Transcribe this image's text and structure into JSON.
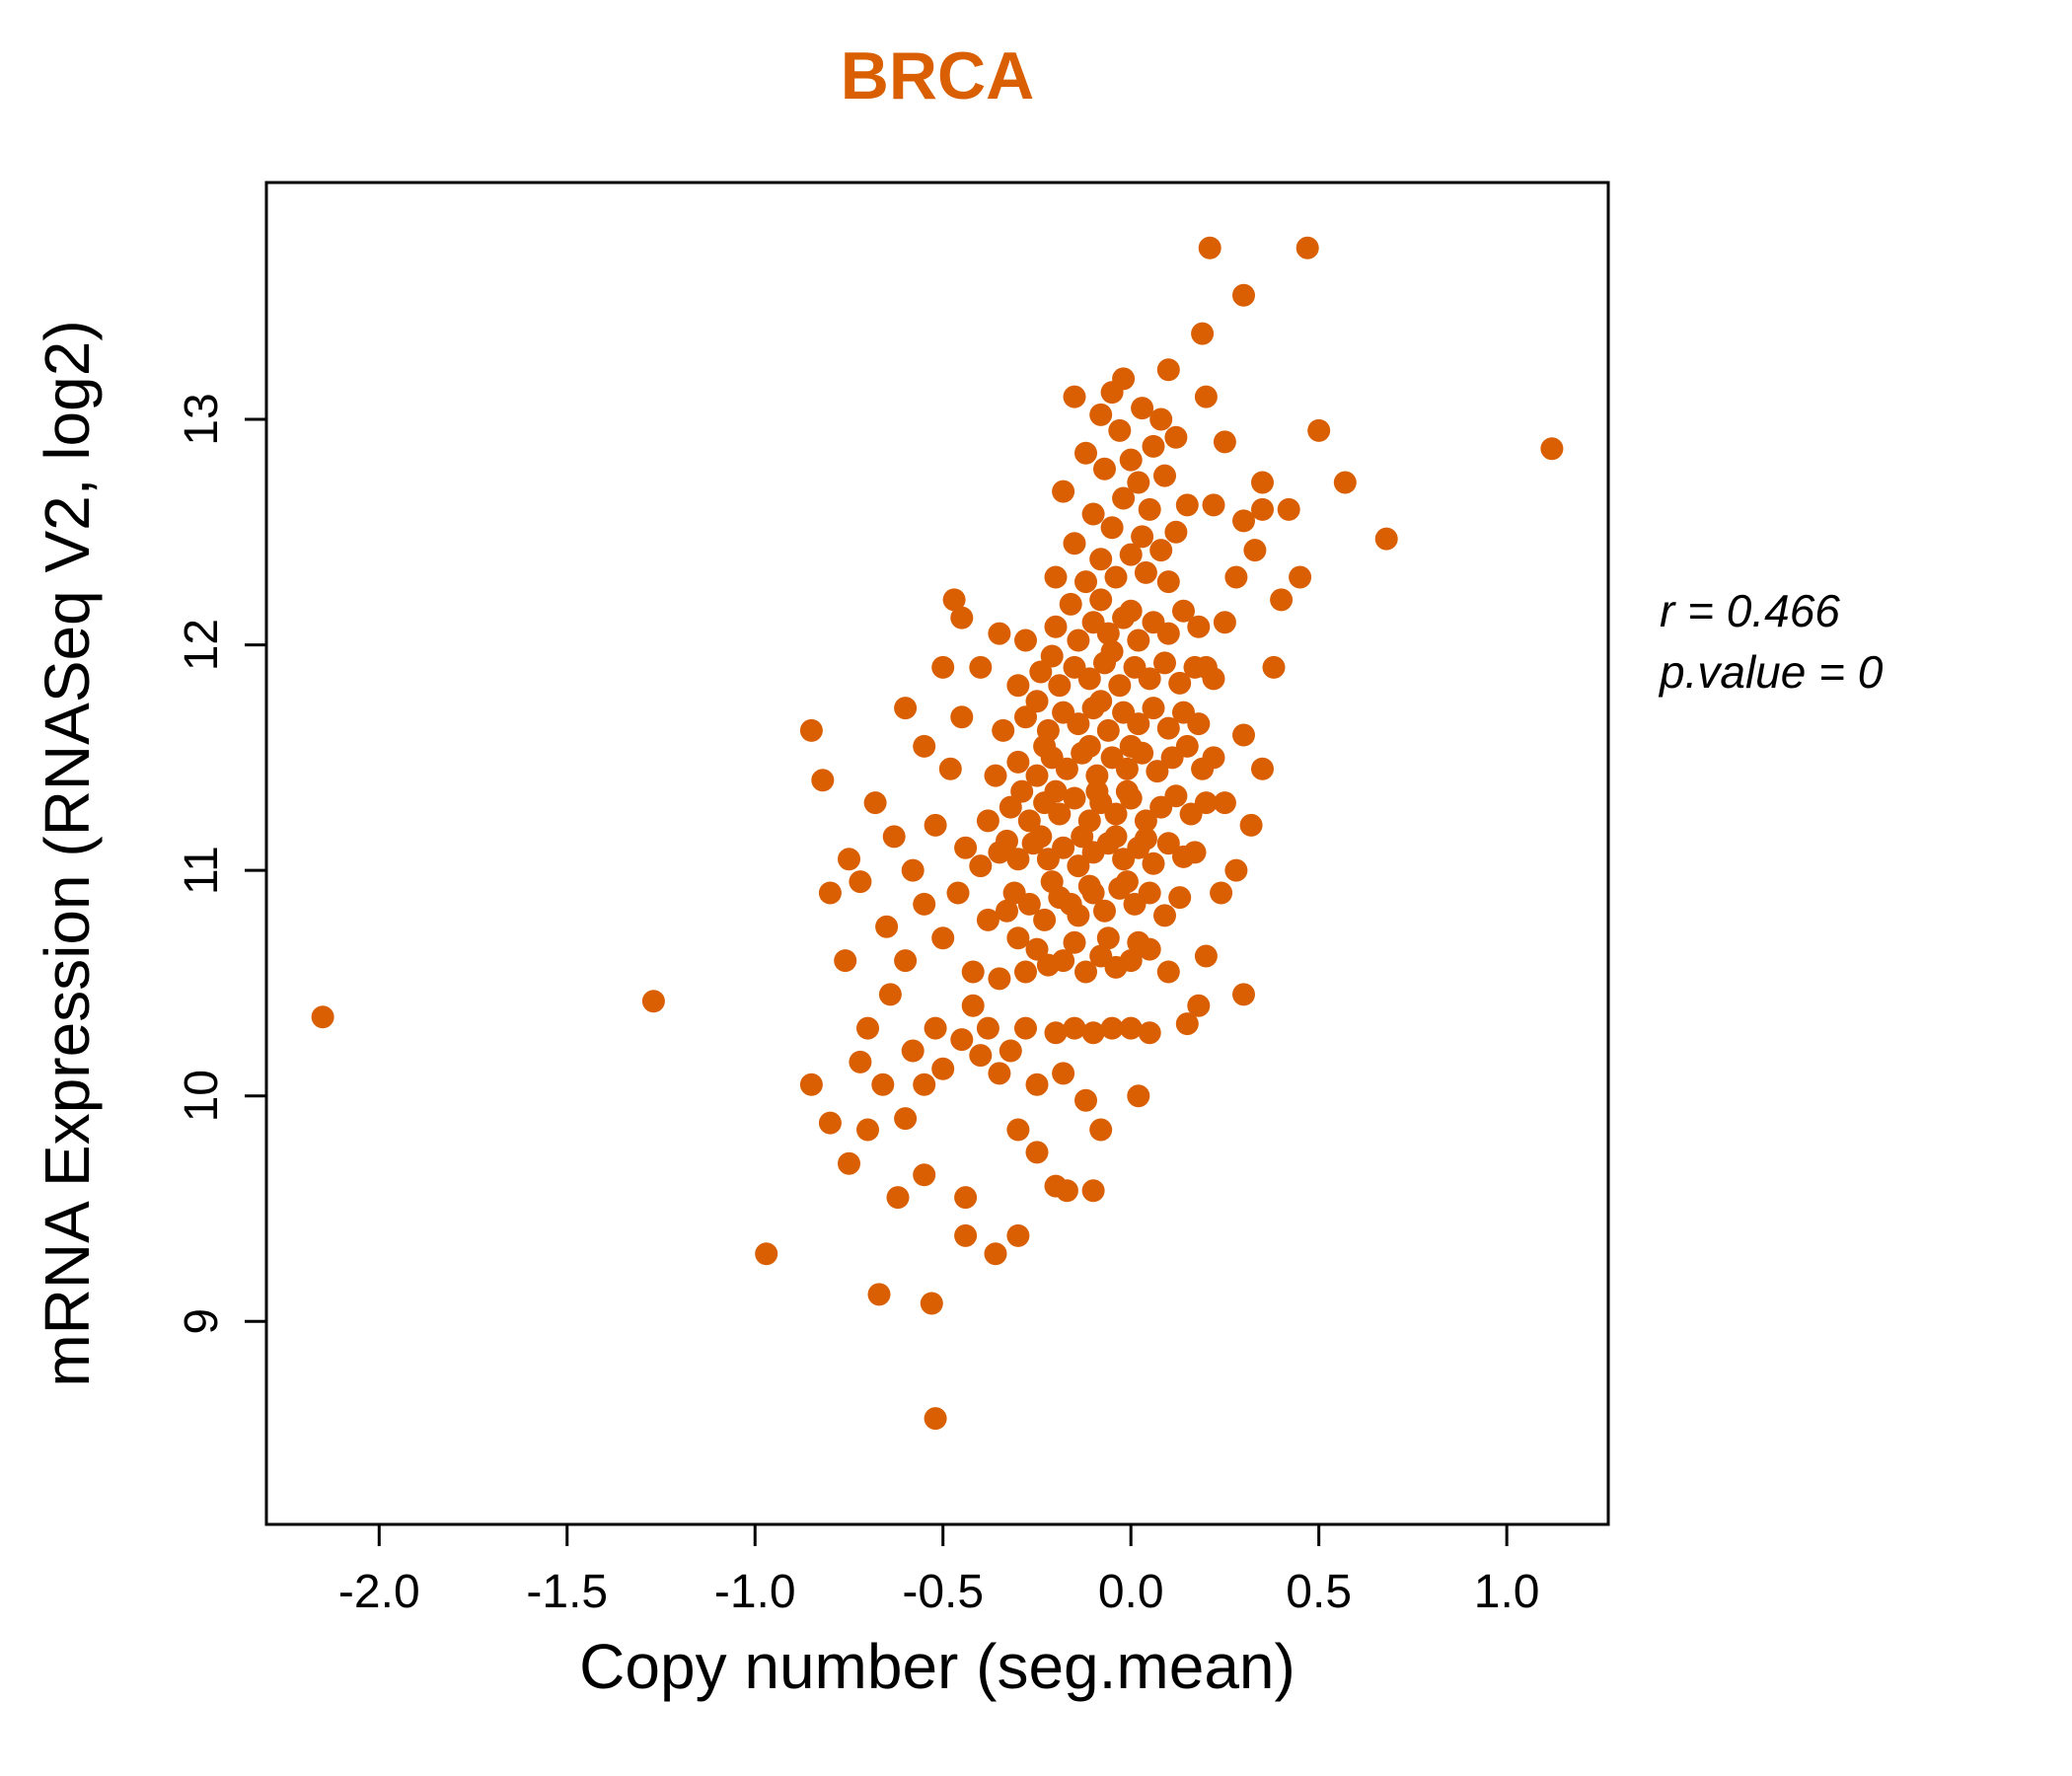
{
  "chart_data": {
    "type": "scatter",
    "title": "BRCA",
    "xlabel": "Copy number (seg.mean)",
    "ylabel": "mRNA Expression (RNASeq V2, log2)",
    "xlim": [
      -2.3,
      1.27
    ],
    "ylim": [
      8.1,
      14.05
    ],
    "x_ticks": [
      -2.0,
      -1.5,
      -1.0,
      -0.5,
      0.0,
      0.5,
      1.0
    ],
    "x_tick_labels": [
      "-2.0",
      "-1.5",
      "-1.0",
      "-0.5",
      "0.0",
      "0.5",
      "1.0"
    ],
    "y_ticks": [
      9,
      10,
      11,
      12,
      13
    ],
    "y_tick_labels": [
      "9",
      "10",
      "11",
      "12",
      "13"
    ],
    "grid": false,
    "legend": "none",
    "point_color": "#d95f02",
    "title_color": "#d95f02",
    "annotation": [
      "r = 0.466",
      "p.value = 0"
    ],
    "points": [
      [
        -0.35,
        10.52
      ],
      [
        -0.28,
        10.55
      ],
      [
        -0.22,
        10.58
      ],
      [
        -0.18,
        10.6
      ],
      [
        -0.12,
        10.55
      ],
      [
        -0.08,
        10.62
      ],
      [
        -0.04,
        10.57
      ],
      [
        0,
        10.6
      ],
      [
        0.05,
        10.65
      ],
      [
        0.1,
        10.55
      ],
      [
        -0.25,
        10.65
      ],
      [
        -0.15,
        10.68
      ],
      [
        -0.06,
        10.7
      ],
      [
        0.02,
        10.68
      ],
      [
        -0.3,
        10.7
      ],
      [
        -0.38,
        10.78
      ],
      [
        -0.33,
        10.82
      ],
      [
        -0.27,
        10.85
      ],
      [
        -0.23,
        10.78
      ],
      [
        -0.19,
        10.88
      ],
      [
        -0.14,
        10.8
      ],
      [
        -0.1,
        10.9
      ],
      [
        -0.07,
        10.82
      ],
      [
        -0.03,
        10.92
      ],
      [
        0.01,
        10.85
      ],
      [
        0.05,
        10.9
      ],
      [
        0.09,
        10.8
      ],
      [
        0.13,
        10.88
      ],
      [
        -0.21,
        10.95
      ],
      [
        -0.11,
        10.93
      ],
      [
        -0.01,
        10.95
      ],
      [
        -0.31,
        10.9
      ],
      [
        -0.16,
        10.85
      ],
      [
        -0.4,
        11.02
      ],
      [
        -0.35,
        11.08
      ],
      [
        -0.3,
        11.05
      ],
      [
        -0.26,
        11.12
      ],
      [
        -0.22,
        11.05
      ],
      [
        -0.18,
        11.1
      ],
      [
        -0.14,
        11.02
      ],
      [
        -0.1,
        11.08
      ],
      [
        -0.06,
        11.12
      ],
      [
        -0.02,
        11.05
      ],
      [
        0.02,
        11.1
      ],
      [
        0.06,
        11.03
      ],
      [
        0.1,
        11.12
      ],
      [
        0.14,
        11.06
      ],
      [
        -0.24,
        11.15
      ],
      [
        -0.13,
        11.15
      ],
      [
        -0.04,
        11.15
      ],
      [
        0.04,
        11.14
      ],
      [
        -0.33,
        11.13
      ],
      [
        0.17,
        11.08
      ],
      [
        -0.38,
        11.22
      ],
      [
        -0.32,
        11.28
      ],
      [
        -0.27,
        11.22
      ],
      [
        -0.23,
        11.3
      ],
      [
        -0.19,
        11.25
      ],
      [
        -0.15,
        11.32
      ],
      [
        -0.11,
        11.22
      ],
      [
        -0.08,
        11.3
      ],
      [
        -0.04,
        11.25
      ],
      [
        0,
        11.32
      ],
      [
        0.04,
        11.22
      ],
      [
        0.08,
        11.28
      ],
      [
        0.12,
        11.33
      ],
      [
        0.16,
        11.25
      ],
      [
        -0.2,
        11.35
      ],
      [
        -0.09,
        11.35
      ],
      [
        -0.01,
        11.35
      ],
      [
        -0.29,
        11.35
      ],
      [
        0.2,
        11.3
      ],
      [
        -0.36,
        11.42
      ],
      [
        -0.3,
        11.48
      ],
      [
        -0.25,
        11.42
      ],
      [
        -0.21,
        11.5
      ],
      [
        -0.17,
        11.45
      ],
      [
        -0.13,
        11.52
      ],
      [
        -0.09,
        11.42
      ],
      [
        -0.05,
        11.5
      ],
      [
        -0.01,
        11.45
      ],
      [
        0.03,
        11.52
      ],
      [
        0.07,
        11.44
      ],
      [
        0.11,
        11.5
      ],
      [
        0.15,
        11.55
      ],
      [
        -0.23,
        11.55
      ],
      [
        -0.11,
        11.55
      ],
      [
        0,
        11.55
      ],
      [
        0.19,
        11.45
      ],
      [
        -0.34,
        11.62
      ],
      [
        -0.28,
        11.68
      ],
      [
        -0.22,
        11.62
      ],
      [
        -0.18,
        11.7
      ],
      [
        -0.14,
        11.65
      ],
      [
        -0.1,
        11.72
      ],
      [
        -0.06,
        11.62
      ],
      [
        -0.02,
        11.7
      ],
      [
        0.02,
        11.65
      ],
      [
        0.06,
        11.72
      ],
      [
        0.1,
        11.63
      ],
      [
        0.14,
        11.7
      ],
      [
        -0.25,
        11.75
      ],
      [
        -0.08,
        11.75
      ],
      [
        0.18,
        11.65
      ],
      [
        -0.45,
        11.68
      ],
      [
        -0.3,
        11.82
      ],
      [
        -0.24,
        11.88
      ],
      [
        -0.19,
        11.82
      ],
      [
        -0.15,
        11.9
      ],
      [
        -0.11,
        11.85
      ],
      [
        -0.07,
        11.92
      ],
      [
        -0.03,
        11.82
      ],
      [
        0.01,
        11.9
      ],
      [
        0.05,
        11.85
      ],
      [
        0.09,
        11.92
      ],
      [
        0.13,
        11.83
      ],
      [
        0.17,
        11.9
      ],
      [
        -0.21,
        11.95
      ],
      [
        -0.05,
        11.97
      ],
      [
        0.22,
        11.85
      ],
      [
        -0.4,
        11.9
      ],
      [
        -0.28,
        12.02
      ],
      [
        -0.2,
        12.08
      ],
      [
        -0.14,
        12.02
      ],
      [
        -0.1,
        12.1
      ],
      [
        -0.06,
        12.05
      ],
      [
        -0.02,
        12.12
      ],
      [
        0.02,
        12.02
      ],
      [
        0.06,
        12.1
      ],
      [
        0.1,
        12.05
      ],
      [
        0.14,
        12.15
      ],
      [
        0.18,
        12.08
      ],
      [
        -0.16,
        12.18
      ],
      [
        -0.08,
        12.2
      ],
      [
        0,
        12.15
      ],
      [
        0.25,
        12.1
      ],
      [
        -0.35,
        12.05
      ],
      [
        -0.45,
        12.12
      ],
      [
        -0.12,
        12.28
      ],
      [
        -0.04,
        12.3
      ],
      [
        0.04,
        12.32
      ],
      [
        0.1,
        12.28
      ],
      [
        -0.2,
        12.3
      ],
      [
        -0.08,
        12.38
      ],
      [
        0,
        12.4
      ],
      [
        0.08,
        12.42
      ],
      [
        -0.15,
        12.45
      ],
      [
        0.03,
        12.48
      ],
      [
        -0.05,
        12.52
      ],
      [
        0.12,
        12.5
      ],
      [
        -0.1,
        12.58
      ],
      [
        0.05,
        12.6
      ],
      [
        -0.02,
        12.65
      ],
      [
        0.15,
        12.62
      ],
      [
        -0.18,
        12.68
      ],
      [
        0.02,
        12.72
      ],
      [
        -0.07,
        12.78
      ],
      [
        0.09,
        12.75
      ],
      [
        0,
        12.82
      ],
      [
        -0.12,
        12.85
      ],
      [
        0.06,
        12.88
      ],
      [
        -0.03,
        12.95
      ],
      [
        0.12,
        12.92
      ],
      [
        -0.08,
        13.02
      ],
      [
        0.03,
        13.05
      ],
      [
        -0.15,
        13.1
      ],
      [
        0.08,
        13
      ],
      [
        -0.02,
        13.18
      ],
      [
        0.3,
        12.55
      ],
      [
        0.35,
        12.6
      ],
      [
        0.28,
        12.3
      ],
      [
        0.33,
        12.42
      ],
      [
        0.22,
        12.62
      ],
      [
        0.25,
        12.9
      ],
      [
        0.2,
        13.1
      ],
      [
        0.1,
        13.22
      ],
      [
        -0.05,
        13.12
      ],
      [
        -0.85,
        11.62
      ],
      [
        -0.82,
        11.4
      ],
      [
        -0.75,
        11.05
      ],
      [
        -0.72,
        10.95
      ],
      [
        -0.68,
        11.3
      ],
      [
        -0.65,
        10.75
      ],
      [
        -0.63,
        11.15
      ],
      [
        -0.6,
        10.6
      ],
      [
        -0.58,
        11
      ],
      [
        -0.55,
        10.85
      ],
      [
        -0.52,
        11.2
      ],
      [
        -0.5,
        10.7
      ],
      [
        -0.48,
        11.45
      ],
      [
        -0.46,
        10.9
      ],
      [
        -0.44,
        11.1
      ],
      [
        -0.42,
        10.55
      ],
      [
        -0.55,
        11.55
      ],
      [
        -0.6,
        11.72
      ],
      [
        -0.5,
        11.9
      ],
      [
        -0.47,
        12.2
      ],
      [
        -0.52,
        10.3
      ],
      [
        -0.58,
        10.2
      ],
      [
        -0.64,
        10.45
      ],
      [
        -0.7,
        10.3
      ],
      [
        -0.76,
        10.6
      ],
      [
        -0.8,
        10.9
      ],
      [
        -0.66,
        10.05
      ],
      [
        -0.72,
        10.15
      ],
      [
        -0.6,
        9.9
      ],
      [
        -0.55,
        10.05
      ],
      [
        -0.5,
        10.12
      ],
      [
        -0.45,
        10.25
      ],
      [
        -0.42,
        10.4
      ],
      [
        -0.4,
        10.18
      ],
      [
        -0.38,
        10.3
      ],
      [
        -0.35,
        10.1
      ],
      [
        -0.85,
        10.05
      ],
      [
        -0.8,
        9.88
      ],
      [
        -0.75,
        9.7
      ],
      [
        -0.7,
        9.85
      ],
      [
        -0.32,
        10.2
      ],
      [
        -0.28,
        10.3
      ],
      [
        -0.25,
        10.05
      ],
      [
        -0.2,
        10.28
      ],
      [
        -0.15,
        10.3
      ],
      [
        -0.1,
        10.28
      ],
      [
        -0.05,
        10.3
      ],
      [
        0,
        10.3
      ],
      [
        0.05,
        10.28
      ],
      [
        -0.18,
        10.1
      ],
      [
        -0.12,
        9.98
      ],
      [
        -0.08,
        9.85
      ],
      [
        0.02,
        10
      ],
      [
        -0.3,
        9.85
      ],
      [
        -0.36,
        9.3
      ],
      [
        -0.44,
        9.38
      ],
      [
        -0.62,
        9.55
      ],
      [
        -0.17,
        9.58
      ],
      [
        -0.55,
        9.65
      ],
      [
        -0.25,
        9.75
      ],
      [
        0.2,
        11.9
      ],
      [
        0.22,
        11.5
      ],
      [
        0.25,
        11.3
      ],
      [
        0.28,
        11
      ],
      [
        0.3,
        11.6
      ],
      [
        0.32,
        11.2
      ],
      [
        0.35,
        11.45
      ],
      [
        0.24,
        10.9
      ],
      [
        0.2,
        10.62
      ],
      [
        0.3,
        10.45
      ],
      [
        0.18,
        10.4
      ],
      [
        0.15,
        10.32
      ],
      [
        0.38,
        11.9
      ],
      [
        0.4,
        12.2
      ],
      [
        0.45,
        12.3
      ],
      [
        0.5,
        12.95
      ],
      [
        0.57,
        12.72
      ],
      [
        0.68,
        12.47
      ],
      [
        0.47,
        13.76
      ],
      [
        0.21,
        13.76
      ],
      [
        0.3,
        13.55
      ],
      [
        0.19,
        13.38
      ],
      [
        1.12,
        12.87
      ],
      [
        0.35,
        12.72
      ],
      [
        0.42,
        12.6
      ],
      [
        -2.15,
        10.35
      ],
      [
        -1.27,
        10.42
      ],
      [
        -0.97,
        9.3
      ],
      [
        -0.52,
        8.57
      ],
      [
        -0.53,
        9.08
      ],
      [
        -0.67,
        9.12
      ],
      [
        -0.44,
        9.55
      ],
      [
        -0.3,
        9.38
      ],
      [
        -0.2,
        9.6
      ],
      [
        -0.1,
        9.58
      ]
    ]
  }
}
